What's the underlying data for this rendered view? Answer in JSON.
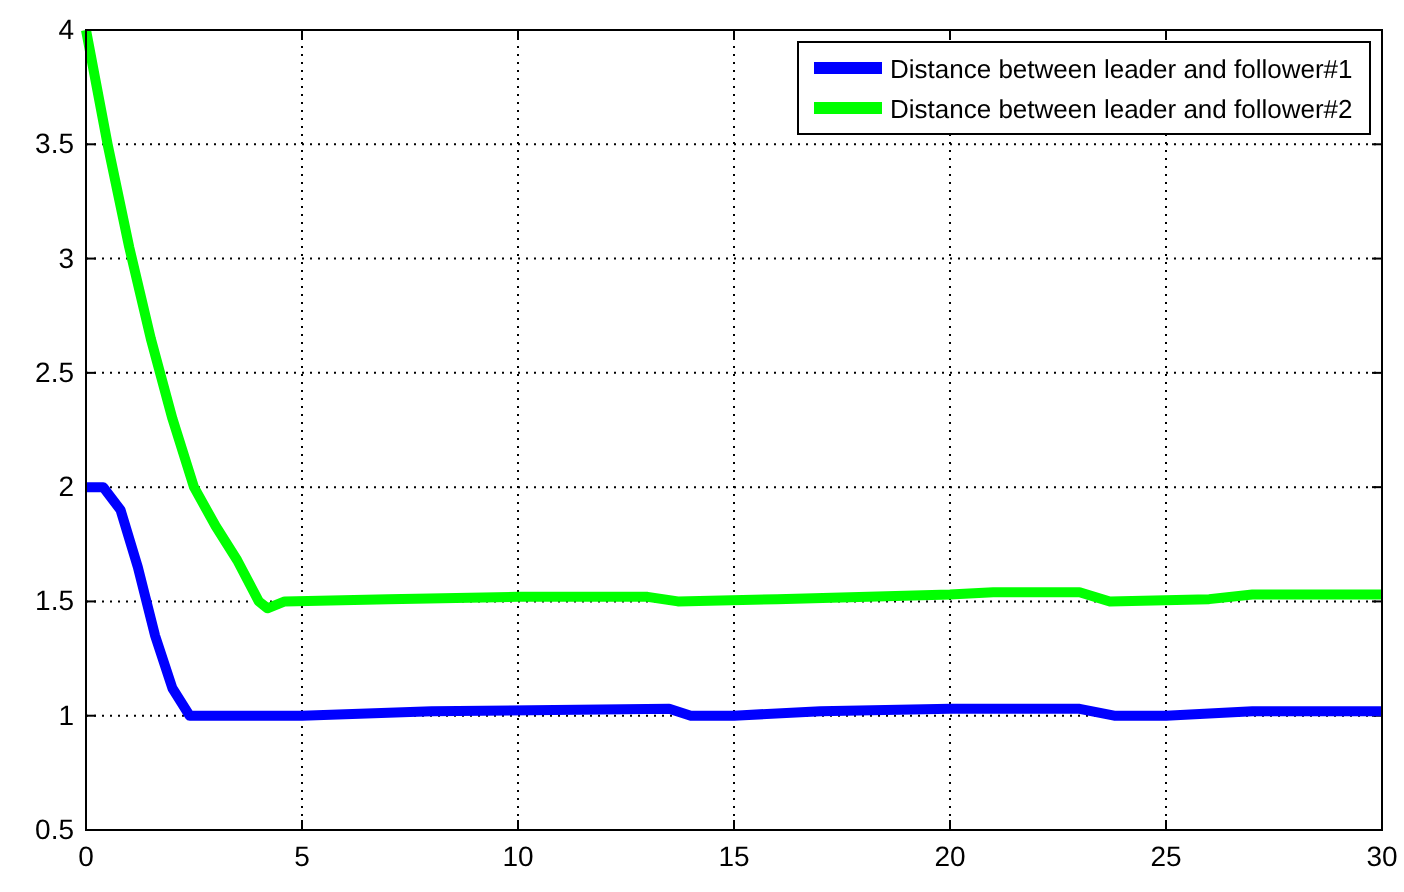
{
  "chart_data": {
    "type": "line",
    "xlim": [
      0,
      30
    ],
    "xticks": [
      0,
      5,
      10,
      15,
      20,
      25,
      30
    ],
    "ylim": [
      0.5,
      4
    ],
    "yticks": [
      0.5,
      1,
      1.5,
      2,
      2.5,
      3,
      3.5,
      4
    ],
    "grid": true,
    "legend": "top right",
    "line_style": "solid",
    "marker": "none",
    "series": [
      {
        "name": "Distance between leader and follower#1",
        "color": "#0000ff",
        "x": [
          0,
          0.4,
          0.8,
          1.2,
          1.6,
          2,
          2.4,
          5,
          8,
          13.5,
          14,
          15,
          17,
          20,
          23,
          23.8,
          25,
          26,
          27,
          30
        ],
        "values": [
          2,
          2,
          1.9,
          1.65,
          1.35,
          1.12,
          1,
          1,
          1.02,
          1.03,
          1,
          1,
          1.02,
          1.03,
          1.03,
          1,
          1,
          1.01,
          1.02,
          1.02
        ]
      },
      {
        "name": "Distance between leader and follower#2",
        "color": "#00ff00",
        "x": [
          0,
          0.5,
          1,
          1.5,
          2,
          2.5,
          3,
          3.5,
          4,
          4.2,
          4.6,
          7,
          10,
          13,
          13.7,
          16,
          20,
          21,
          23,
          23.7,
          26,
          27,
          30
        ],
        "values": [
          4,
          3.5,
          3.05,
          2.65,
          2.3,
          2,
          1.83,
          1.68,
          1.5,
          1.47,
          1.5,
          1.51,
          1.52,
          1.52,
          1.5,
          1.51,
          1.53,
          1.54,
          1.54,
          1.5,
          1.51,
          1.53,
          1.53
        ]
      }
    ]
  }
}
